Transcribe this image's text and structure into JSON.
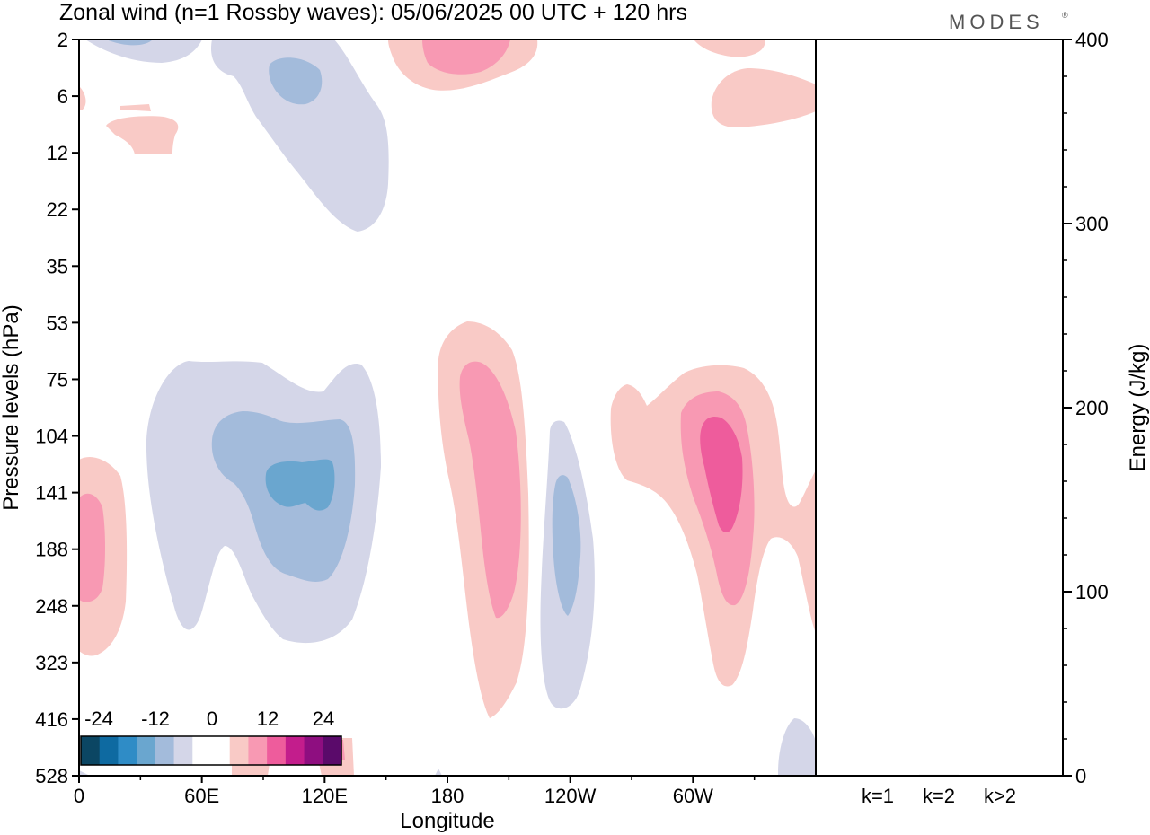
{
  "chart_data": {
    "type": "contour",
    "title": "Zonal wind (n=1 Rossby waves):  05/06/2025  00 UTC  + 120 hrs",
    "logo": "MODES",
    "xlabel": "Longitude",
    "ylabel": "Pressure levels (hPa)",
    "y2label": "Energy (J/kg)",
    "x_ticks": [
      "0",
      "60E",
      "120E",
      "180",
      "120W",
      "60W"
    ],
    "x_tick_degrees": [
      0,
      60,
      120,
      180,
      240,
      300
    ],
    "xlim": [
      0,
      360
    ],
    "y_ticks": [
      "2",
      "6",
      "12",
      "22",
      "35",
      "53",
      "75",
      "104",
      "141",
      "188",
      "248",
      "323",
      "416",
      "528"
    ],
    "y2_ticks": [
      "0",
      "100",
      "200",
      "300",
      "400"
    ],
    "y2lim": [
      0,
      400
    ],
    "grid": false,
    "colorbar": {
      "labels": [
        "-24",
        "-12",
        "0",
        "12",
        "24"
      ],
      "colors": [
        "#0b4663",
        "#0e6aa1",
        "#2f8cc6",
        "#6aa6cf",
        "#a3bbdb",
        "#d4d6e8",
        "#ffffff",
        "#ffffff",
        "#f9cac6",
        "#f899b3",
        "#ee5c9c",
        "#c31d8c",
        "#8e0e80",
        "#5a0a6a"
      ]
    },
    "contour_levels": [
      {
        "name": "-12 to -8",
        "color": "#6aa6cf"
      },
      {
        "name": "-8 to -4",
        "color": "#a3bbdb"
      },
      {
        "name": "-4 to 0",
        "color": "#d4d6e8"
      },
      {
        "name": "0 to 4",
        "color": "#f9cac6"
      },
      {
        "name": "4 to 8",
        "color": "#f899b3"
      },
      {
        "name": "8 to 12",
        "color": "#ee5c9c"
      }
    ],
    "energy_bars": {
      "categories": [
        "k=1",
        "k=2",
        "k>2"
      ],
      "values": [
        0.3,
        0.5,
        0.3
      ]
    }
  }
}
